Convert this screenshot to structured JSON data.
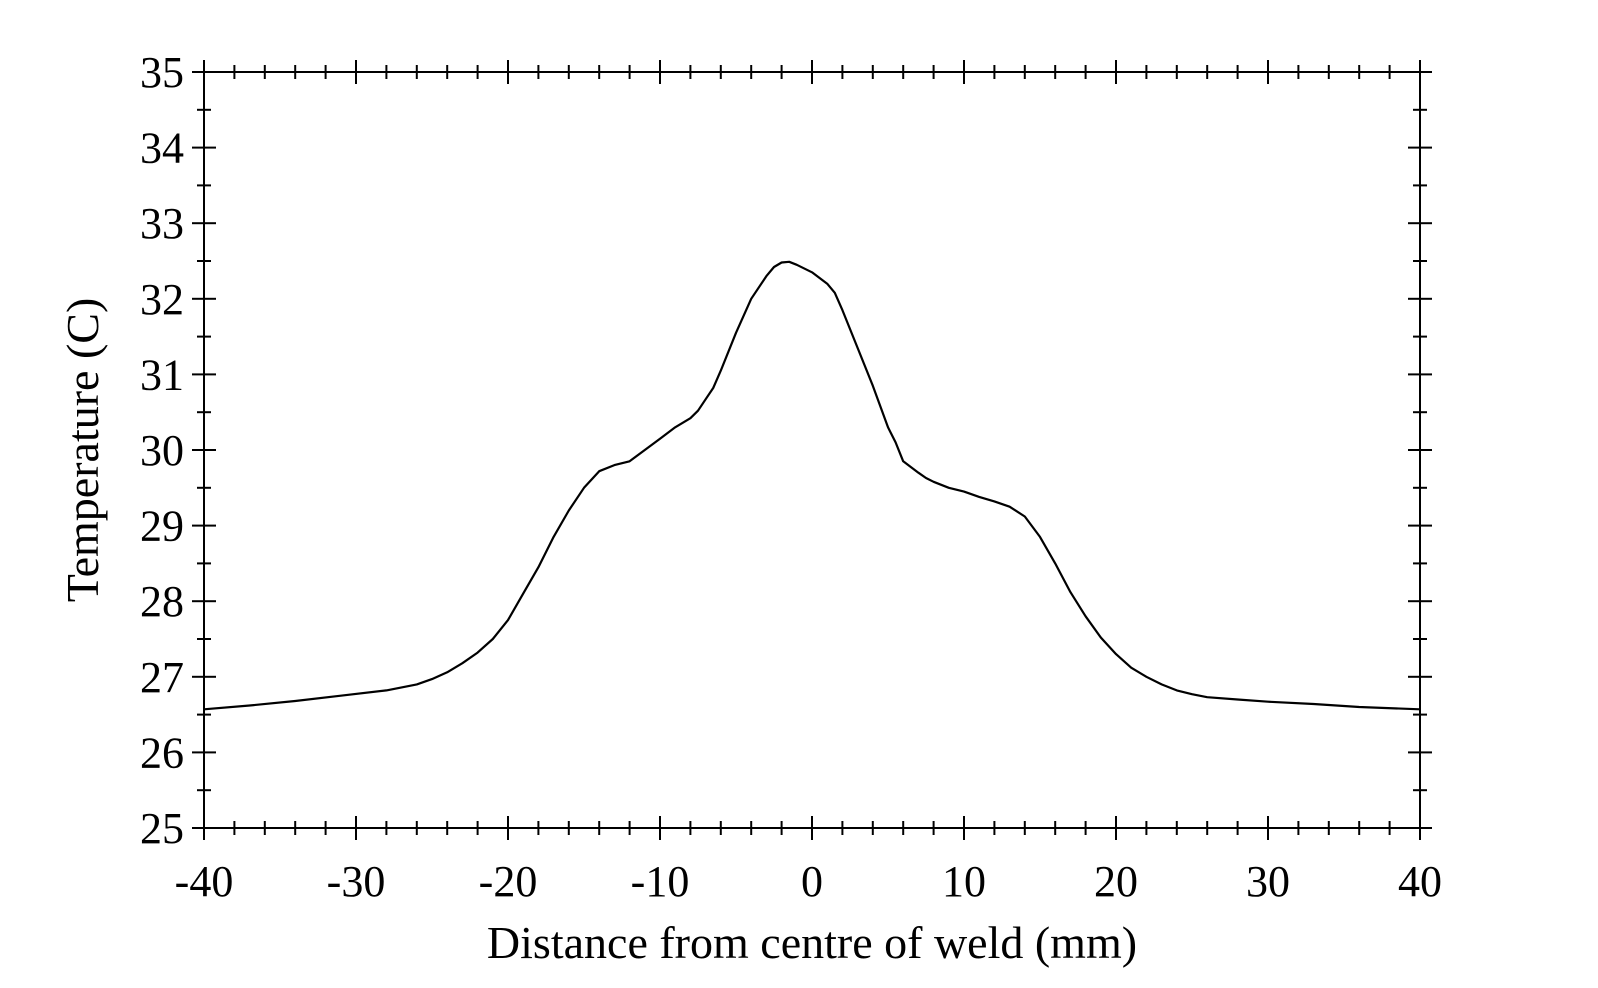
{
  "chart_data": {
    "type": "line",
    "title": "",
    "xlabel": "Distance from centre of weld (mm)",
    "ylabel": "Temperature (C)",
    "xlim": [
      -40,
      40
    ],
    "ylim": [
      25,
      35
    ],
    "xticks": [
      -40,
      -30,
      -20,
      -10,
      0,
      10,
      20,
      30,
      40
    ],
    "yticks": [
      25,
      26,
      27,
      28,
      29,
      30,
      31,
      32,
      33,
      34,
      35
    ],
    "x_minor_step": 2,
    "y_minor_step": 0.5,
    "grid": false,
    "line_color": "#000000",
    "series": [
      {
        "x": [
          -40,
          -37,
          -34,
          -31,
          -28,
          -26,
          -25,
          -24,
          -23,
          -22,
          -21,
          -20,
          -19,
          -18,
          -17,
          -16,
          -15,
          -14,
          -13,
          -12,
          -11,
          -10,
          -9,
          -8,
          -7.5,
          -7,
          -6.5,
          -6,
          -5,
          -4,
          -3,
          -2.5,
          -2,
          -1.5,
          -1,
          0,
          1,
          1.5,
          2,
          3,
          4,
          5,
          5.5,
          6,
          7,
          7.5,
          8,
          9,
          10,
          11,
          12,
          13,
          14,
          15,
          16,
          17,
          18,
          19,
          20,
          21,
          22,
          23,
          24,
          25,
          26,
          28,
          30,
          33,
          36,
          40
        ],
        "y": [
          26.57,
          26.62,
          26.68,
          26.75,
          26.82,
          26.9,
          26.97,
          27.06,
          27.18,
          27.32,
          27.5,
          27.75,
          28.1,
          28.45,
          28.85,
          29.2,
          29.5,
          29.72,
          29.8,
          29.85,
          30.0,
          30.15,
          30.3,
          30.42,
          30.52,
          30.67,
          30.82,
          31.05,
          31.55,
          32.0,
          32.3,
          32.42,
          32.48,
          32.49,
          32.45,
          32.35,
          32.2,
          32.08,
          31.85,
          31.35,
          30.85,
          30.3,
          30.1,
          29.85,
          29.7,
          29.63,
          29.58,
          29.5,
          29.45,
          29.38,
          29.32,
          29.25,
          29.12,
          28.85,
          28.5,
          28.12,
          27.8,
          27.52,
          27.3,
          27.12,
          27.0,
          26.9,
          26.82,
          26.77,
          26.73,
          26.7,
          26.67,
          26.64,
          26.6,
          26.57
        ]
      }
    ]
  }
}
